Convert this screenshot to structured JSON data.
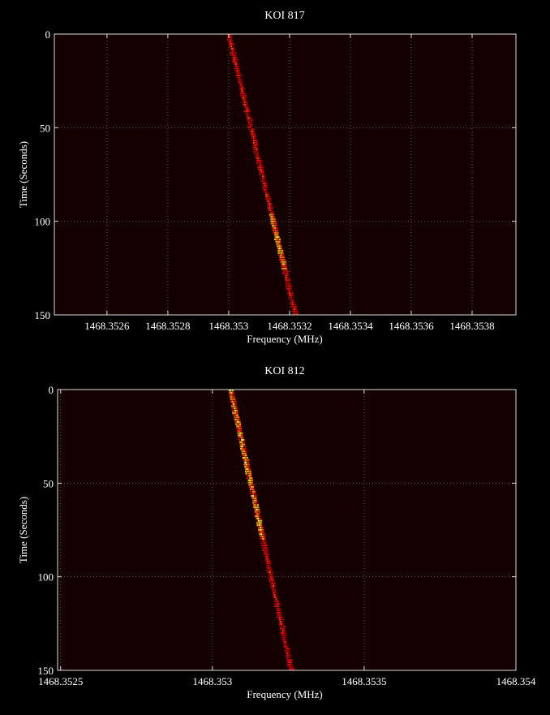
{
  "chart_data": [
    {
      "type": "heatmap",
      "title": "KOI 817",
      "xlabel": "Frequency (MHz)",
      "ylabel": "Time (Seconds)",
      "xlim": [
        1468.352427,
        1468.353944
      ],
      "ylim": [
        150,
        0
      ],
      "xticks": [
        "1468.3526",
        "1468.3528",
        "1468.353",
        "1468.3532",
        "1468.3534",
        "1468.3536",
        "1468.3538"
      ],
      "xtick_values": [
        1468.3526,
        1468.3528,
        1468.353,
        1468.3532,
        1468.3534,
        1468.3536,
        1468.3538
      ],
      "yticks": [
        "0",
        "50",
        "100",
        "150"
      ],
      "ytick_values": [
        0,
        50,
        100,
        150
      ],
      "grid": true,
      "colormap": "hot",
      "background_color": "#140000",
      "signal_track": {
        "start": {
          "time": 0,
          "frequency": 1468.353
        },
        "end": {
          "time": 150,
          "frequency": 1468.35322
        },
        "brightest_time_range": [
          95,
          125
        ]
      }
    },
    {
      "type": "heatmap",
      "title": "KOI 812",
      "xlabel": "Frequency (MHz)",
      "ylabel": "Time (Seconds)",
      "xlim": [
        1468.35249,
        1468.354
      ],
      "ylim": [
        150,
        0
      ],
      "xticks": [
        "1468.3525",
        "1468.353",
        "1468.3535",
        "1468.354"
      ],
      "xtick_values": [
        1468.3525,
        1468.353,
        1468.3535,
        1468.354
      ],
      "yticks": [
        "0",
        "50",
        "100",
        "150"
      ],
      "ytick_values": [
        0,
        50,
        100,
        150
      ],
      "grid": true,
      "colormap": "hot",
      "background_color": "#140000",
      "signal_track": {
        "start": {
          "time": 0,
          "frequency": 1468.35306
        },
        "end": {
          "time": 150,
          "frequency": 1468.35326
        },
        "brightest_time_range": [
          0,
          80
        ]
      }
    }
  ]
}
